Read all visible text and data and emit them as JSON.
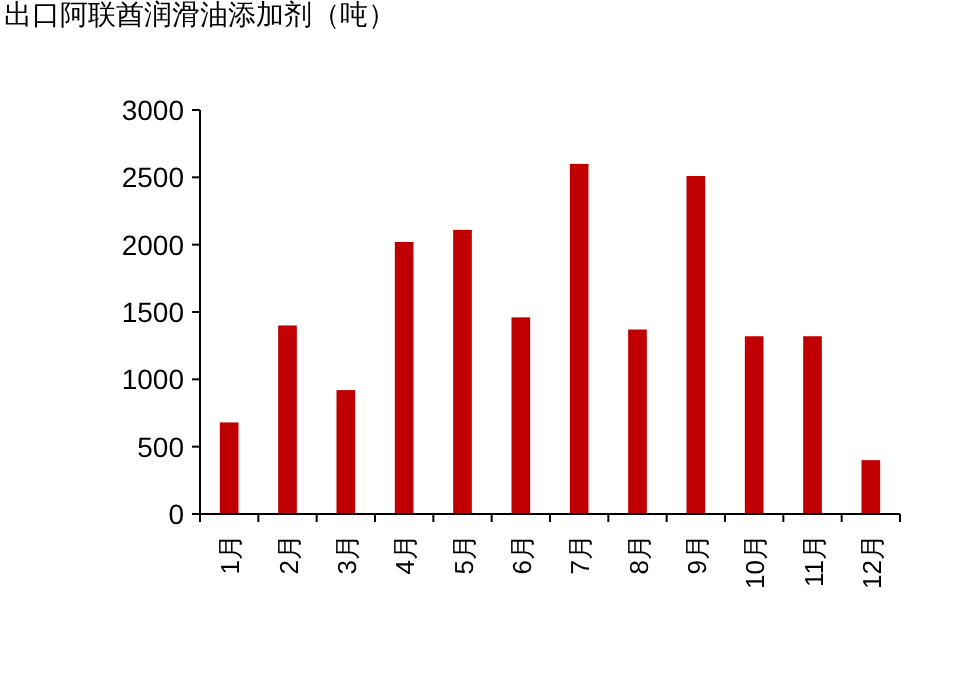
{
  "chart_data": {
    "type": "bar",
    "title": "出口阿联酋润滑油添加剂（吨）",
    "categories": [
      "1月",
      "2月",
      "3月",
      "4月",
      "5月",
      "6月",
      "7月",
      "8月",
      "9月",
      "10月",
      "11月",
      "12月"
    ],
    "values": [
      680,
      1400,
      920,
      2020,
      2110,
      1460,
      2600,
      1370,
      2510,
      1320,
      1320,
      400
    ],
    "color": "#c00000",
    "ylim": [
      0,
      3000
    ],
    "yticks": [
      0,
      500,
      1000,
      1500,
      2000,
      2500,
      3000
    ],
    "grid": false
  }
}
